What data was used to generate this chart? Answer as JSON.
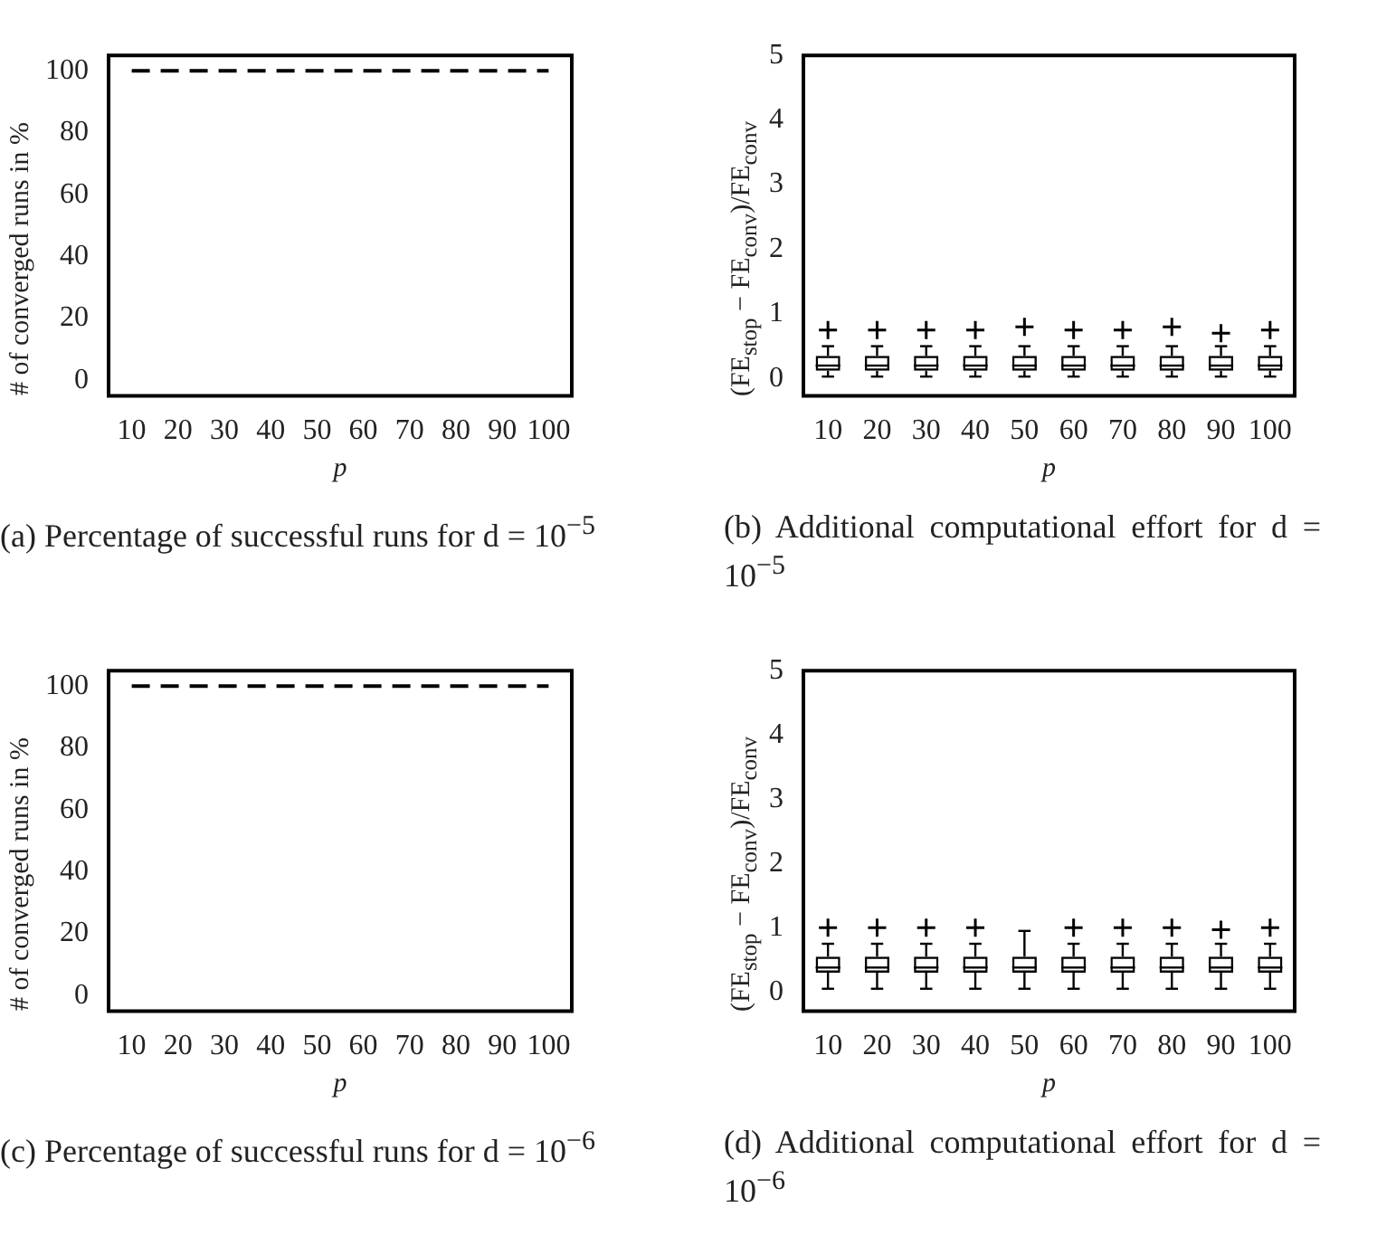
{
  "chart_data": [
    {
      "type": "line",
      "categories": [
        "10",
        "20",
        "30",
        "40",
        "50",
        "60",
        "70",
        "80",
        "90",
        "100"
      ],
      "values": [
        100,
        100,
        100,
        100,
        100,
        100,
        100,
        100,
        100,
        100
      ],
      "color": "#000000",
      "line_style": "dashed",
      "marker": "none",
      "ylim": [
        -5,
        105
      ],
      "yticks": [
        0,
        20,
        40,
        60,
        80,
        100
      ],
      "xlabel": "p",
      "ylabel": "# of converged runs in %",
      "annotations": [
        "(a) Percentage of successful runs for d = 10$^{−5}$"
      ]
    },
    {
      "type": "box",
      "categories": [
        "10",
        "20",
        "30",
        "40",
        "50",
        "60",
        "70",
        "80",
        "90",
        "100"
      ],
      "boxes": [
        {
          "low": 0.03,
          "q1": 0.12,
          "median": 0.2,
          "q3": 0.35,
          "high": 0.5,
          "outliers": [
            0.75
          ]
        },
        {
          "low": 0.03,
          "q1": 0.12,
          "median": 0.2,
          "q3": 0.35,
          "high": 0.5,
          "outliers": [
            0.75
          ]
        },
        {
          "low": 0.03,
          "q1": 0.12,
          "median": 0.2,
          "q3": 0.35,
          "high": 0.5,
          "outliers": [
            0.75
          ]
        },
        {
          "low": 0.03,
          "q1": 0.12,
          "median": 0.2,
          "q3": 0.35,
          "high": 0.5,
          "outliers": [
            0.75
          ]
        },
        {
          "low": 0.03,
          "q1": 0.12,
          "median": 0.2,
          "q3": 0.35,
          "high": 0.5,
          "outliers": [
            0.8
          ]
        },
        {
          "low": 0.03,
          "q1": 0.12,
          "median": 0.2,
          "q3": 0.35,
          "high": 0.5,
          "outliers": [
            0.75
          ]
        },
        {
          "low": 0.03,
          "q1": 0.12,
          "median": 0.2,
          "q3": 0.35,
          "high": 0.5,
          "outliers": [
            0.75
          ]
        },
        {
          "low": 0.03,
          "q1": 0.12,
          "median": 0.2,
          "q3": 0.35,
          "high": 0.5,
          "outliers": [
            0.8
          ]
        },
        {
          "low": 0.03,
          "q1": 0.12,
          "median": 0.2,
          "q3": 0.35,
          "high": 0.5,
          "outliers": [
            0.7
          ]
        },
        {
          "low": 0.03,
          "q1": 0.12,
          "median": 0.2,
          "q3": 0.35,
          "high": 0.5,
          "outliers": [
            0.75
          ]
        }
      ],
      "ylim": [
        -0.27,
        5
      ],
      "yticks": [
        0,
        1,
        2,
        3,
        4,
        5
      ],
      "xlabel": "p",
      "ylabel": "(FE$_{stop}$ − FE$_{conv}$)/FE$_{conv}$",
      "annotations": [
        "(b) Additional computational effort for d = 10$^{−5}$"
      ]
    },
    {
      "type": "line",
      "categories": [
        "10",
        "20",
        "30",
        "40",
        "50",
        "60",
        "70",
        "80",
        "90",
        "100"
      ],
      "values": [
        100,
        100,
        100,
        100,
        100,
        100,
        100,
        100,
        100,
        100
      ],
      "color": "#000000",
      "line_style": "dashed",
      "marker": "none",
      "ylim": [
        -5,
        105
      ],
      "yticks": [
        0,
        20,
        40,
        60,
        80,
        100
      ],
      "xlabel": "p",
      "ylabel": "# of converged runs in %",
      "annotations": [
        "(c) Percentage of successful runs for d = 10$^{−6}$"
      ]
    },
    {
      "type": "box",
      "categories": [
        "10",
        "20",
        "30",
        "40",
        "50",
        "60",
        "70",
        "80",
        "90",
        "100"
      ],
      "boxes": [
        {
          "low": 0.05,
          "q1": 0.3,
          "median": 0.38,
          "q3": 0.55,
          "high": 0.75,
          "outliers": [
            1.0
          ]
        },
        {
          "low": 0.05,
          "q1": 0.3,
          "median": 0.38,
          "q3": 0.55,
          "high": 0.75,
          "outliers": [
            1.0
          ]
        },
        {
          "low": 0.05,
          "q1": 0.3,
          "median": 0.38,
          "q3": 0.55,
          "high": 0.75,
          "outliers": [
            1.0
          ]
        },
        {
          "low": 0.05,
          "q1": 0.3,
          "median": 0.38,
          "q3": 0.55,
          "high": 0.75,
          "outliers": [
            1.0
          ]
        },
        {
          "low": 0.05,
          "q1": 0.3,
          "median": 0.38,
          "q3": 0.55,
          "high": 0.95
        },
        {
          "low": 0.05,
          "q1": 0.3,
          "median": 0.38,
          "q3": 0.55,
          "high": 0.75,
          "outliers": [
            1.0
          ]
        },
        {
          "low": 0.05,
          "q1": 0.3,
          "median": 0.38,
          "q3": 0.55,
          "high": 0.75,
          "outliers": [
            1.0
          ]
        },
        {
          "low": 0.05,
          "q1": 0.3,
          "median": 0.38,
          "q3": 0.55,
          "high": 0.75,
          "outliers": [
            1.0
          ]
        },
        {
          "low": 0.05,
          "q1": 0.3,
          "median": 0.38,
          "q3": 0.55,
          "high": 0.75,
          "outliers": [
            0.97
          ]
        },
        {
          "low": 0.05,
          "q1": 0.3,
          "median": 0.38,
          "q3": 0.55,
          "high": 0.75,
          "outliers": [
            1.0
          ]
        }
      ],
      "ylim": [
        -0.3,
        5
      ],
      "yticks": [
        0,
        1,
        2,
        3,
        4,
        5
      ],
      "xlabel": "p",
      "ylabel": "(FE$_{stop}$ − FE$_{conv}$)/FE$_{conv}$",
      "annotations": [
        "(d) Additional computational effort for d = 10$^{−6}$"
      ]
    }
  ]
}
